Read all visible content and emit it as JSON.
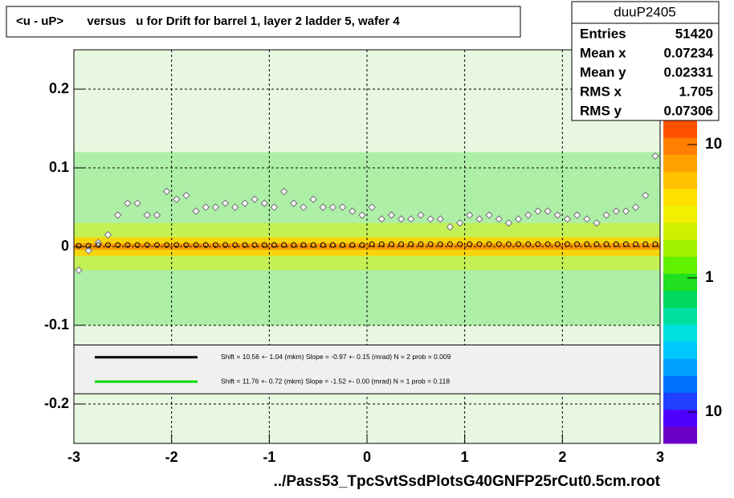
{
  "chart_data": {
    "type": "scatter",
    "title": "<u - uP>       versus   u for Drift for barrel 1, layer 2 ladder 5, wafer 4",
    "xlabel": "../Pass53_TpcSvtSsdPlotsG40GNFP25rCut0.5cm.root",
    "xlim": [
      -3,
      3
    ],
    "ylim": [
      -0.25,
      0.25
    ],
    "xticks": [
      -3,
      -2,
      -1,
      0,
      1,
      2,
      3
    ],
    "yticks": [
      -0.2,
      -0.1,
      0,
      0.1,
      0.2
    ],
    "grid": true,
    "x": [
      -2.95,
      -2.85,
      -2.75,
      -2.65,
      -2.55,
      -2.45,
      -2.35,
      -2.25,
      -2.15,
      -2.05,
      -1.95,
      -1.85,
      -1.75,
      -1.65,
      -1.55,
      -1.45,
      -1.35,
      -1.25,
      -1.15,
      -1.05,
      -0.95,
      -0.85,
      -0.75,
      -0.65,
      -0.55,
      -0.45,
      -0.35,
      -0.25,
      -0.15,
      -0.05,
      0.05,
      0.15,
      0.25,
      0.35,
      0.45,
      0.55,
      0.65,
      0.75,
      0.85,
      0.95,
      1.05,
      1.15,
      1.25,
      1.35,
      1.45,
      1.55,
      1.65,
      1.75,
      1.85,
      1.95,
      2.05,
      2.15,
      2.25,
      2.35,
      2.45,
      2.55,
      2.65,
      2.75,
      2.85,
      2.95
    ],
    "series": [
      {
        "color": "#808080",
        "marker": "diamond",
        "values": [
          -0.03,
          -0.005,
          0.005,
          0.015,
          0.04,
          0.055,
          0.055,
          0.04,
          0.04,
          0.07,
          0.06,
          0.065,
          0.045,
          0.05,
          0.05,
          0.055,
          0.05,
          0.055,
          0.06,
          0.055,
          0.05,
          0.07,
          0.055,
          0.05,
          0.06,
          0.05,
          0.05,
          0.05,
          0.045,
          0.04,
          0.05,
          0.035,
          0.04,
          0.035,
          0.035,
          0.04,
          0.035,
          0.035,
          0.025,
          0.03,
          0.04,
          0.035,
          0.04,
          0.035,
          0.03,
          0.035,
          0.04,
          0.045,
          0.045,
          0.04,
          0.035,
          0.04,
          0.035,
          0.03,
          0.04,
          0.045,
          0.045,
          0.05,
          0.065,
          0.115
        ]
      },
      {
        "color": "#000000",
        "marker": "circle",
        "values": [
          0.001,
          0.001,
          0.002,
          0.002,
          0.002,
          0.002,
          0.002,
          0.002,
          0.002,
          0.002,
          0.002,
          0.002,
          0.002,
          0.002,
          0.002,
          0.002,
          0.002,
          0.002,
          0.002,
          0.002,
          0.002,
          0.002,
          0.002,
          0.002,
          0.002,
          0.002,
          0.002,
          0.002,
          0.002,
          0.002,
          0.003,
          0.003,
          0.003,
          0.003,
          0.003,
          0.003,
          0.003,
          0.003,
          0.003,
          0.003,
          0.003,
          0.003,
          0.003,
          0.003,
          0.003,
          0.003,
          0.003,
          0.003,
          0.003,
          0.003,
          0.003,
          0.003,
          0.003,
          0.003,
          0.003,
          0.003,
          0.003,
          0.003,
          0.003,
          0.003
        ]
      }
    ],
    "fits": [
      {
        "color": "#000000",
        "text": "Shift =    10.56 +- 1.04 (mkm) Slope =    -0.97 +- 0.15 (mrad)  N = 2 prob = 0.009"
      },
      {
        "color": "#00dd00",
        "text": "Shift =    11.76 +- 0.72 (mkm) Slope =    -1.52 +- 0.00 (mrad)  N = 1 prob = 0.118"
      }
    ],
    "stats": {
      "title": "duuP2405",
      "rows": [
        [
          "Entries",
          "51420"
        ],
        [
          "Mean x",
          "0.07234"
        ],
        [
          "Mean y",
          "0.02331"
        ],
        [
          "RMS x",
          "1.705"
        ],
        [
          "RMS y",
          "0.07306"
        ]
      ]
    },
    "palette_labels": [
      "10",
      "1",
      "10"
    ]
  }
}
